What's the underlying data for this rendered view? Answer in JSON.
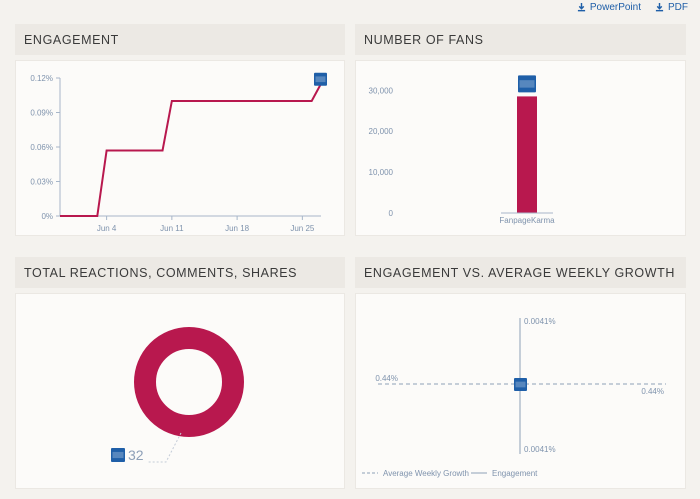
{
  "toolbar": {
    "powerpoint_label": "PowerPoint",
    "pdf_label": "PDF"
  },
  "colors": {
    "series": "#b8184e",
    "badge": "#1f5fa8",
    "axis": "#a7b6c9",
    "tick_text": "#7f93ad"
  },
  "badge_text": "Fanpage Karma",
  "panels": {
    "engagement": {
      "title": "ENGAGEMENT"
    },
    "fans": {
      "title": "NUMBER OF FANS"
    },
    "reactions": {
      "title": "TOTAL REACTIONS, COMMENTS, SHARES",
      "total": "32"
    },
    "growth": {
      "title": "ENGAGEMENT VS. AVERAGE WEEKLY GROWTH"
    }
  },
  "chart_data": [
    {
      "id": "engagement",
      "type": "line",
      "y_ticks": [
        "0%",
        "0.03%",
        "0.06%",
        "0.09%",
        "0.12%"
      ],
      "x_ticks": [
        "Jun 4",
        "Jun 11",
        "Jun 18",
        "Jun 25"
      ],
      "series": [
        {
          "x": [
            "May 30",
            "Jun 3",
            "Jun 4",
            "Jun 10",
            "Jun 11",
            "Jun 26",
            "Jun 27"
          ],
          "y": [
            0,
            0,
            0.057,
            0.057,
            0.1,
            0.1,
            0.115
          ]
        }
      ],
      "ylim": [
        0,
        0.12
      ],
      "grid": false
    },
    {
      "id": "fans",
      "type": "bar",
      "categories": [
        "FanpageKarma"
      ],
      "values": [
        28500
      ],
      "y_ticks": [
        "0",
        "10,000",
        "20,000",
        "30,000"
      ],
      "ylim": [
        0,
        33000
      ]
    },
    {
      "id": "reactions",
      "type": "pie",
      "values": [
        32
      ],
      "labels": [
        "32"
      ]
    },
    {
      "id": "growth",
      "type": "scatter",
      "x_labels": [
        "0.44%",
        "0.44%"
      ],
      "y_labels": [
        "0.0041%",
        "0.0041%"
      ],
      "legend": [
        {
          "label": "Average Weekly Growth",
          "style": "dashed"
        },
        {
          "label": "Engagement",
          "style": "solid"
        }
      ],
      "legend_position": "bottom-left"
    }
  ]
}
